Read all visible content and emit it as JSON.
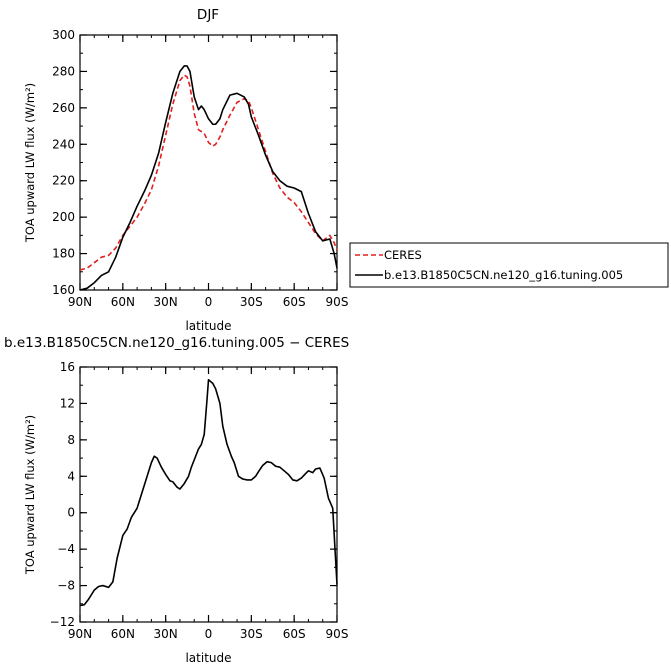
{
  "chart_data": [
    {
      "type": "line",
      "title": "DJF",
      "xlabel": "latitude",
      "ylabel": "TOA upward LW flux (W/m²)",
      "xlim": [
        -90,
        90
      ],
      "ylim": [
        160,
        300
      ],
      "xticks": [
        -90,
        -60,
        -30,
        0,
        30,
        60,
        90
      ],
      "xtick_labels": [
        "90N",
        "60N",
        "30N",
        "0",
        "30S",
        "60S",
        "90S"
      ],
      "yticks": [
        160,
        180,
        200,
        220,
        240,
        260,
        280,
        300
      ],
      "ytick_labels": [
        "160",
        "180",
        "200",
        "220",
        "240",
        "260",
        "280",
        "300"
      ],
      "grid": false,
      "legend_position": "right",
      "series": [
        {
          "name": "CERES",
          "color": "#e0201e",
          "dash": "dashed",
          "x": [
            -90,
            -85,
            -80,
            -75,
            -70,
            -65,
            -60,
            -55,
            -50,
            -45,
            -40,
            -35,
            -30,
            -25,
            -20,
            -17,
            -15,
            -13,
            -10,
            -7,
            -5,
            -3,
            0,
            3,
            5,
            8,
            10,
            15,
            20,
            25,
            28,
            30,
            35,
            40,
            45,
            50,
            55,
            60,
            65,
            70,
            75,
            80,
            85,
            88,
            90
          ],
          "y": [
            171,
            172,
            175,
            178,
            179,
            183,
            190,
            195,
            200,
            207,
            215,
            228,
            245,
            262,
            275,
            278,
            277,
            272,
            257,
            248,
            247,
            246,
            241,
            239,
            240,
            244,
            248,
            256,
            263,
            265,
            264,
            260,
            248,
            236,
            224,
            216,
            211,
            208,
            203,
            197,
            191,
            187,
            190,
            186,
            182
          ]
        },
        {
          "name": "b.e13.B1850C5CN.ne120_g16.tuning.005",
          "color": "#000000",
          "dash": "solid",
          "x": [
            -90,
            -85,
            -80,
            -75,
            -70,
            -65,
            -60,
            -55,
            -50,
            -45,
            -40,
            -35,
            -30,
            -25,
            -20,
            -17,
            -15,
            -13,
            -10,
            -7,
            -5,
            -3,
            0,
            3,
            5,
            8,
            10,
            15,
            20,
            25,
            28,
            30,
            35,
            40,
            45,
            50,
            55,
            60,
            65,
            70,
            75,
            80,
            85,
            88,
            90
          ],
          "y": [
            160,
            161,
            164,
            168,
            170,
            178,
            189,
            197,
            206,
            214,
            223,
            235,
            252,
            268,
            280,
            283,
            283,
            280,
            266,
            259,
            261,
            259,
            254,
            251,
            251,
            254,
            259,
            267,
            268,
            266,
            262,
            255,
            245,
            234,
            225,
            220,
            217,
            216,
            214,
            202,
            192,
            187,
            188,
            180,
            172
          ]
        }
      ]
    },
    {
      "type": "line",
      "title": "b.e13.B1850C5CN.ne120_g16.tuning.005 − CERES",
      "xlabel": "latitude",
      "ylabel": "TOA upward LW flux (W/m²)",
      "xlim": [
        -90,
        90
      ],
      "ylim": [
        -12,
        16
      ],
      "xticks": [
        -90,
        -60,
        -30,
        0,
        30,
        60,
        90
      ],
      "xtick_labels": [
        "90N",
        "60N",
        "30N",
        "0",
        "30S",
        "60S",
        "90S"
      ],
      "yticks": [
        -12,
        -8,
        -4,
        0,
        4,
        8,
        12,
        16
      ],
      "ytick_labels": [
        "−12",
        "−8",
        "−4",
        "0",
        "4",
        "8",
        "12",
        "16"
      ],
      "grid": false,
      "series": [
        {
          "color": "#000000",
          "dash": "solid",
          "x": [
            -90,
            -87,
            -84,
            -80,
            -77,
            -74,
            -70,
            -67,
            -64,
            -60,
            -57,
            -54,
            -50,
            -47,
            -44,
            -40,
            -38,
            -36,
            -33,
            -30,
            -27,
            -25,
            -22,
            -20,
            -17,
            -14,
            -12,
            -10,
            -7,
            -5,
            -3,
            -1,
            0,
            3,
            5,
            8,
            10,
            13,
            16,
            18,
            21,
            24,
            27,
            30,
            33,
            35,
            38,
            41,
            44,
            47,
            50,
            53,
            56,
            59,
            62,
            65,
            68,
            70,
            73,
            75,
            78,
            81,
            84,
            87,
            90
          ],
          "y": [
            -10.2,
            -10.1,
            -9.5,
            -8.5,
            -8.1,
            -8,
            -8.2,
            -7.6,
            -5,
            -2.5,
            -1.8,
            -0.5,
            0.5,
            2,
            3.5,
            5.5,
            6.2,
            6,
            5,
            4.2,
            3.5,
            3.4,
            2.8,
            2.6,
            3.2,
            4,
            5,
            5.8,
            7,
            7.5,
            8.6,
            12.5,
            14.6,
            14.2,
            13.6,
            12,
            9.5,
            7.5,
            6.2,
            5.5,
            4,
            3.7,
            3.6,
            3.6,
            4,
            4.5,
            5.2,
            5.6,
            5.5,
            5.1,
            5,
            4.6,
            4.2,
            3.6,
            3.5,
            3.8,
            4.3,
            4.6,
            4.4,
            4.8,
            4.9,
            3.8,
            1.6,
            0.5,
            -7.9
          ]
        }
      ]
    }
  ]
}
